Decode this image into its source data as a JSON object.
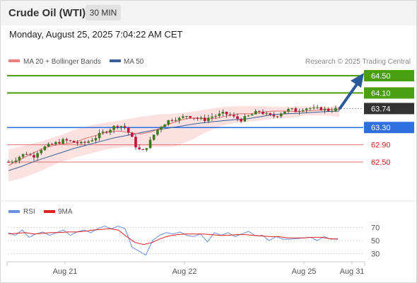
{
  "header": {
    "instrument": "Crude Oil (WTI)",
    "timeframe": "30 MIN",
    "datetime": "Monday, August 25, 2025 7:04:22 AM CET"
  },
  "legend": {
    "ma20_label": "MA 20 + Bollinger Bands",
    "ma50_label": "MA 50",
    "credit": "Research © 2025 Trading Central",
    "rsi_label": "RSI",
    "ma9_label": "9MA"
  },
  "colors": {
    "target_green": "#4a9f10",
    "current_dark": "#333333",
    "pivot_blue": "#2f6fe0",
    "support_red": "#e07070",
    "ma20": "#e07070",
    "ma50": "#3a5f9a",
    "bollinger_fill": "#fbe1df",
    "candle_up": "#3d7a1a",
    "candle_down": "#c0143c",
    "arrow": "#2a5a9a",
    "rsi_line": "#6a8fe0",
    "rsi_ma": "#dd2222"
  },
  "chart_data": [
    {
      "type": "candlestick",
      "title": "Crude Oil (WTI)",
      "timeframe": "30 MIN",
      "x_labels": [
        "Aug 21",
        "Aug 22",
        "Aug 25",
        "Aug 31"
      ],
      "ylim": [
        62.15,
        64.6
      ],
      "series": [
        {
          "name": "MA 20 + Bollinger Bands"
        },
        {
          "name": "MA 50"
        }
      ],
      "levels": [
        {
          "label": "64.50",
          "value": 64.5,
          "kind": "resistance_target"
        },
        {
          "label": "64.10",
          "value": 64.1,
          "kind": "resistance_target"
        },
        {
          "label": "63.74",
          "value": 63.74,
          "kind": "current_price"
        },
        {
          "label": "63.30",
          "value": 63.3,
          "kind": "pivot"
        },
        {
          "label": "62.90",
          "value": 62.9,
          "kind": "support"
        },
        {
          "label": "62.50",
          "value": 62.5,
          "kind": "support"
        }
      ],
      "price_path": [
        62.5,
        62.55,
        62.65,
        62.7,
        62.62,
        62.78,
        62.85,
        62.9,
        62.95,
        63.0,
        62.98,
        62.95,
        62.92,
        62.98,
        63.05,
        63.15,
        63.22,
        63.3,
        63.36,
        63.3,
        63.1,
        62.8,
        62.75,
        62.95,
        63.2,
        63.35,
        63.45,
        63.52,
        63.5,
        63.58,
        63.55,
        63.5,
        63.48,
        63.55,
        63.58,
        63.62,
        63.6,
        63.52,
        63.48,
        63.55,
        63.62,
        63.68,
        63.6,
        63.55,
        63.6,
        63.68,
        63.72,
        63.68,
        63.74,
        63.76,
        63.72,
        63.74,
        63.7,
        63.72,
        63.74
      ],
      "ma20_path": [
        62.42,
        62.55,
        62.68,
        62.8,
        62.88,
        62.92,
        62.95,
        63.05,
        63.12,
        63.2,
        63.22,
        63.18,
        63.15,
        63.2,
        63.32,
        63.42,
        63.5,
        63.52,
        63.5,
        63.52,
        63.58,
        63.62,
        63.62,
        63.65,
        63.68,
        63.68,
        63.67,
        63.68,
        63.7,
        63.72,
        63.72
      ],
      "ma50_path": [
        62.3,
        62.4,
        62.52,
        62.62,
        62.72,
        62.82,
        62.9,
        62.98,
        63.06,
        63.12,
        63.18,
        63.24,
        63.28,
        63.33,
        63.38,
        63.42,
        63.45,
        63.48,
        63.5,
        63.55,
        63.6,
        63.62,
        63.63,
        63.65,
        63.67,
        63.68
      ],
      "bollinger_upper": [
        62.8,
        62.88,
        62.98,
        63.1,
        63.25,
        63.35,
        63.42,
        63.48,
        63.55,
        63.6,
        63.62,
        63.66,
        63.72,
        63.78,
        63.8,
        63.8,
        63.78,
        63.78,
        63.8,
        63.78,
        63.8
      ],
      "bollinger_lower": [
        62.05,
        62.15,
        62.3,
        62.48,
        62.6,
        62.7,
        62.8,
        62.85,
        62.85,
        62.85,
        62.85,
        63.0,
        63.2,
        63.35,
        63.42,
        63.45,
        63.5,
        63.52,
        63.58,
        63.58,
        63.55
      ]
    },
    {
      "type": "line",
      "title": "RSI",
      "series": [
        {
          "name": "RSI"
        },
        {
          "name": "9MA"
        }
      ],
      "ylim": [
        20,
        80
      ],
      "y_ticks": [
        30,
        50,
        70
      ],
      "y_tick_labels": [
        "30",
        "50",
        "70"
      ],
      "rsi_path": [
        62,
        58,
        66,
        55,
        60,
        63,
        58,
        62,
        66,
        58,
        63,
        66,
        62,
        68,
        72,
        68,
        72,
        68,
        40,
        34,
        28,
        50,
        58,
        62,
        60,
        63,
        58,
        56,
        60,
        48,
        62,
        58,
        62,
        56,
        60,
        64,
        57,
        58,
        50,
        56,
        52,
        52,
        53,
        54,
        55,
        50,
        56,
        52,
        53
      ],
      "ma9_path": [
        60,
        61,
        62,
        60,
        61,
        62,
        62,
        63,
        63,
        64,
        66,
        67,
        68,
        66,
        56,
        47,
        44,
        47,
        53,
        57,
        59,
        60,
        60,
        60,
        59,
        58,
        58,
        59,
        59,
        58,
        57,
        56,
        56,
        54,
        54,
        54,
        55,
        55,
        53,
        52
      ]
    }
  ]
}
